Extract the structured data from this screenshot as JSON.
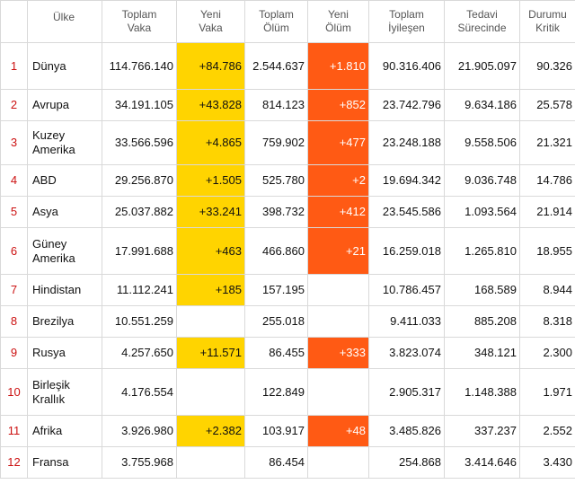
{
  "headers": {
    "country": "Ülke",
    "total_cases": [
      "Toplam",
      "Vaka"
    ],
    "new_cases": [
      "Yeni",
      "Vaka"
    ],
    "total_deaths": [
      "Toplam",
      "Ölüm"
    ],
    "new_deaths": [
      "Yeni",
      "Ölüm"
    ],
    "total_recovered": [
      "Toplam",
      "İyileşen"
    ],
    "active": [
      "Tedavi",
      "Sürecinde"
    ],
    "critical": [
      "Durumu",
      "Kritik"
    ]
  },
  "rows": [
    {
      "rank": "1",
      "country": [
        "Dünya"
      ],
      "total_cases": "114.766.140",
      "new_cases": "+84.786",
      "total_deaths": "2.544.637",
      "new_deaths": "+1.810",
      "total_recovered": "90.316.406",
      "active": "21.905.097",
      "critical": "90.326"
    },
    {
      "rank": "2",
      "country": [
        "Avrupa"
      ],
      "total_cases": "34.191.105",
      "new_cases": "+43.828",
      "total_deaths": "814.123",
      "new_deaths": "+852",
      "total_recovered": "23.742.796",
      "active": "9.634.186",
      "critical": "25.578"
    },
    {
      "rank": "3",
      "country": [
        "Kuzey",
        "Amerika"
      ],
      "total_cases": "33.566.596",
      "new_cases": "+4.865",
      "total_deaths": "759.902",
      "new_deaths": "+477",
      "total_recovered": "23.248.188",
      "active": "9.558.506",
      "critical": "21.321"
    },
    {
      "rank": "4",
      "country": [
        "ABD"
      ],
      "total_cases": "29.256.870",
      "new_cases": "+1.505",
      "total_deaths": "525.780",
      "new_deaths": "+2",
      "total_recovered": "19.694.342",
      "active": "9.036.748",
      "critical": "14.786"
    },
    {
      "rank": "5",
      "country": [
        "Asya"
      ],
      "total_cases": "25.037.882",
      "new_cases": "+33.241",
      "total_deaths": "398.732",
      "new_deaths": "+412",
      "total_recovered": "23.545.586",
      "active": "1.093.564",
      "critical": "21.914"
    },
    {
      "rank": "6",
      "country": [
        "Güney",
        "Amerika"
      ],
      "total_cases": "17.991.688",
      "new_cases": "+463",
      "total_deaths": "466.860",
      "new_deaths": "+21",
      "total_recovered": "16.259.018",
      "active": "1.265.810",
      "critical": "18.955"
    },
    {
      "rank": "7",
      "country": [
        "Hindistan"
      ],
      "total_cases": "11.112.241",
      "new_cases": "+185",
      "total_deaths": "157.195",
      "new_deaths": "",
      "total_recovered": "10.786.457",
      "active": "168.589",
      "critical": "8.944"
    },
    {
      "rank": "8",
      "country": [
        "Brezilya"
      ],
      "total_cases": "10.551.259",
      "new_cases": "",
      "total_deaths": "255.018",
      "new_deaths": "",
      "total_recovered": "9.411.033",
      "active": "885.208",
      "critical": "8.318"
    },
    {
      "rank": "9",
      "country": [
        "Rusya"
      ],
      "total_cases": "4.257.650",
      "new_cases": "+11.571",
      "total_deaths": "86.455",
      "new_deaths": "+333",
      "total_recovered": "3.823.074",
      "active": "348.121",
      "critical": "2.300"
    },
    {
      "rank": "10",
      "country": [
        "Birleşik",
        "Krallık"
      ],
      "total_cases": "4.176.554",
      "new_cases": "",
      "total_deaths": "122.849",
      "new_deaths": "",
      "total_recovered": "2.905.317",
      "active": "1.148.388",
      "critical": "1.971"
    },
    {
      "rank": "11",
      "country": [
        "Afrika"
      ],
      "total_cases": "3.926.980",
      "new_cases": "+2.382",
      "total_deaths": "103.917",
      "new_deaths": "+48",
      "total_recovered": "3.485.826",
      "active": "337.237",
      "critical": "2.552"
    },
    {
      "rank": "12",
      "country": [
        "Fransa"
      ],
      "total_cases": "3.755.968",
      "new_cases": "",
      "total_deaths": "86.454",
      "new_deaths": "",
      "total_recovered": "254.868",
      "active": "3.414.646",
      "critical": "3.430"
    }
  ],
  "colors": {
    "new_cases_highlight": "#ffd400",
    "new_deaths_highlight": "#ff5a14",
    "rank_text": "#cc1111"
  }
}
